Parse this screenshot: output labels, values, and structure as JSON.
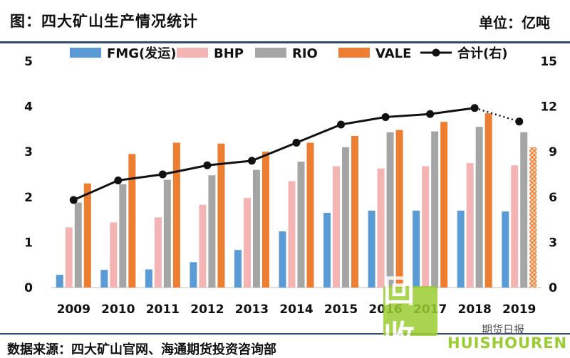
{
  "header": {
    "title": "图：四大矿山生产情况统计",
    "unit": "单位：亿吨"
  },
  "footer": {
    "source": "数据来源：四大矿山官网、海通期货投资咨询部"
  },
  "watermark": {
    "logo": "回收",
    "text": "HUISHOUREN",
    "brand": "期货日报"
  },
  "chart_data": {
    "type": "bar",
    "categories": [
      "2009",
      "2010",
      "2011",
      "2012",
      "2013",
      "2014",
      "2015",
      "2016",
      "2017",
      "2018",
      "2019"
    ],
    "ylim": [
      0,
      5
    ],
    "y_ticks": [
      0,
      1,
      2,
      3,
      4,
      5
    ],
    "y2lim": [
      0,
      15
    ],
    "y2_ticks": [
      0,
      3,
      6,
      9,
      12,
      15
    ],
    "legend_position": "top",
    "grid": false,
    "series": [
      {
        "name": "FMG(发运)",
        "color": "#5b9bd5",
        "axis": "left",
        "values": [
          0.28,
          0.39,
          0.4,
          0.56,
          0.83,
          1.24,
          1.65,
          1.7,
          1.7,
          1.7,
          1.68
        ]
      },
      {
        "name": "BHP",
        "color": "#f4b4b4",
        "axis": "left",
        "values": [
          1.33,
          1.44,
          1.55,
          1.83,
          1.98,
          2.35,
          2.68,
          2.63,
          2.68,
          2.75,
          2.7
        ]
      },
      {
        "name": "RIO",
        "color": "#a5a5a5",
        "axis": "left",
        "values": [
          1.88,
          2.28,
          2.38,
          2.48,
          2.6,
          2.78,
          3.1,
          3.43,
          3.45,
          3.55,
          3.43
        ]
      },
      {
        "name": "VALE",
        "color": "#ed7d31",
        "axis": "left",
        "values": [
          2.3,
          2.95,
          3.2,
          3.18,
          3.0,
          3.2,
          3.35,
          3.48,
          3.66,
          3.85,
          3.1
        ],
        "estimated_index": 10
      },
      {
        "name": "合计(右)",
        "color": "#111111",
        "axis": "right",
        "kind": "line",
        "values": [
          5.8,
          7.1,
          7.5,
          8.1,
          8.4,
          9.6,
          10.8,
          11.3,
          11.5,
          11.9,
          11.0
        ],
        "dotted_from_index": 9
      }
    ]
  }
}
